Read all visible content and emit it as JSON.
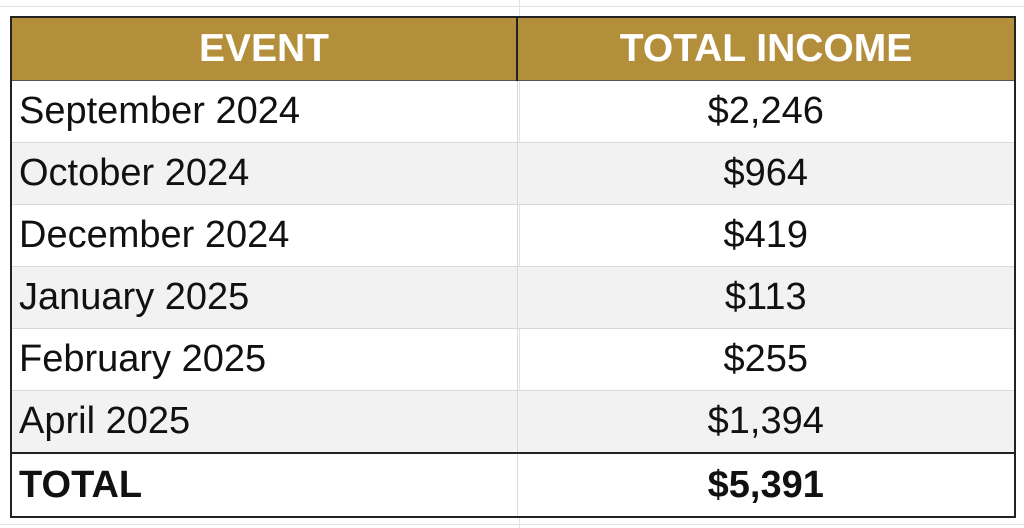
{
  "table": {
    "headers": {
      "event": "EVENT",
      "income": "TOTAL INCOME"
    },
    "rows": [
      {
        "event": "September 2024",
        "income": "$2,246"
      },
      {
        "event": "October 2024",
        "income": "$964"
      },
      {
        "event": "December 2024",
        "income": "$419"
      },
      {
        "event": "January 2025",
        "income": "$113"
      },
      {
        "event": "February 2025",
        "income": "$255"
      },
      {
        "event": "April 2025",
        "income": "$1,394"
      }
    ],
    "total": {
      "label": "TOTAL",
      "value": "$5,391"
    }
  },
  "colors": {
    "header_bg": "#b38f3c",
    "header_text": "#ffffff",
    "alt_row_bg": "#f2f2f2",
    "border": "#222222"
  }
}
